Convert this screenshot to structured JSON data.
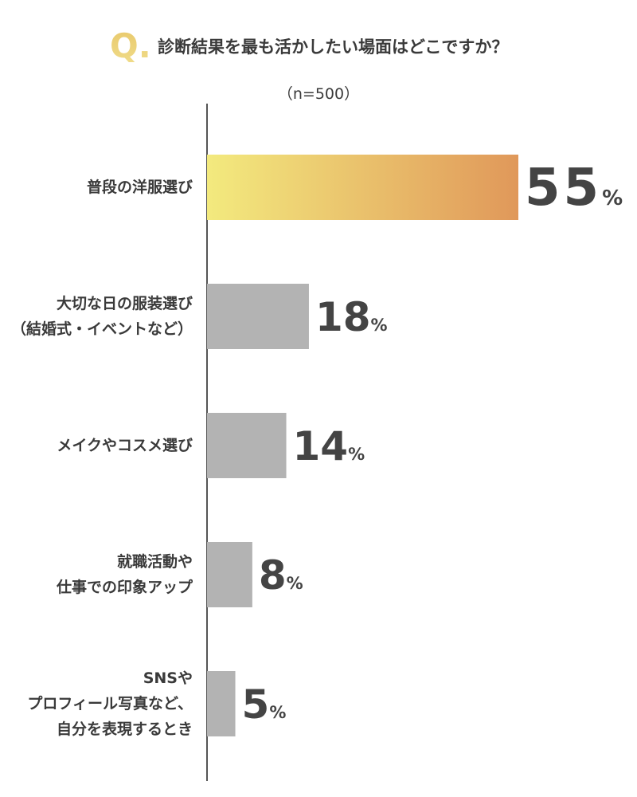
{
  "chart_data": {
    "type": "bar",
    "orientation": "horizontal",
    "question_marker": "Q.",
    "title": "診断結果を最も活かしたい場面はどこですか？",
    "subtitle": "（n=500）",
    "categories": [
      "普段の洋服選び",
      "大切な日の服装選び\n（結婚式・イベントなど）",
      "メイクやコスメ選び",
      "就職活動や\n仕事での印象アップ",
      "SNSや\nプロフィール写真など、\n自分を表現するとき"
    ],
    "values": [
      55,
      18,
      14,
      8,
      5
    ],
    "value_labels": [
      "55%",
      "18%",
      "14%",
      "8%",
      "5%"
    ],
    "bar_colors": [
      [
        "#f3ea7e",
        "#e0985a"
      ],
      "#b3b3b3",
      "#b3b3b3",
      "#b3b3b3",
      "#b3b3b3"
    ]
  }
}
